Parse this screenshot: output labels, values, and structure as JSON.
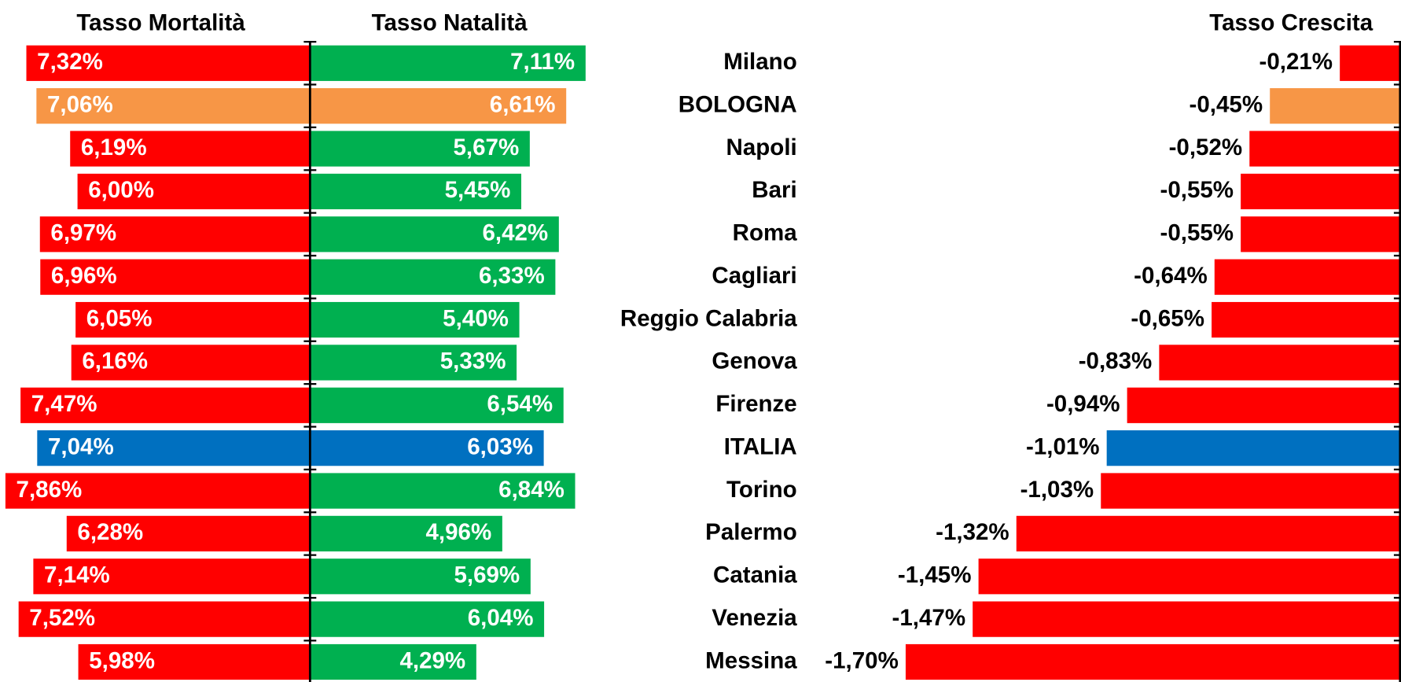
{
  "chart_data": {
    "type": "butterfly",
    "categories": [
      "Milano",
      "BOLOGNA",
      "Napoli",
      "Bari",
      "Roma",
      "Cagliari",
      "Reggio Calabria",
      "Genova",
      "Firenze",
      "ITALIA",
      "Torino",
      "Palermo",
      "Catania",
      "Venezia",
      "Messina"
    ],
    "series": [
      {
        "name": "Tasso Mortalità",
        "reversed": true,
        "xlim": [
          0,
          8
        ],
        "values": [
          7.32,
          7.06,
          6.19,
          6.0,
          6.97,
          6.96,
          6.05,
          6.16,
          7.47,
          7.04,
          7.86,
          6.28,
          7.14,
          7.52,
          5.98
        ],
        "value_labels": [
          "7,32%",
          "7,06%",
          "6,19%",
          "6,00%",
          "6,97%",
          "6,96%",
          "6,05%",
          "6,16%",
          "7,47%",
          "7,04%",
          "7,86%",
          "6,28%",
          "7,14%",
          "7,52%",
          "5,98%"
        ],
        "colors": [
          "#ff0000",
          "#f79646",
          "#ff0000",
          "#ff0000",
          "#ff0000",
          "#ff0000",
          "#ff0000",
          "#ff0000",
          "#ff0000",
          "#0070c0",
          "#ff0000",
          "#ff0000",
          "#ff0000",
          "#ff0000",
          "#ff0000"
        ]
      },
      {
        "name": "Tasso Natalità",
        "reversed": false,
        "xlim": [
          0,
          8
        ],
        "values": [
          7.11,
          6.61,
          5.67,
          5.45,
          6.42,
          6.33,
          5.4,
          5.33,
          6.54,
          6.03,
          6.84,
          4.96,
          5.69,
          6.04,
          4.29
        ],
        "value_labels": [
          "7,11%",
          "6,61%",
          "5,67%",
          "5,45%",
          "6,42%",
          "6,33%",
          "5,40%",
          "5,33%",
          "6,54%",
          "6,03%",
          "6,84%",
          "4,96%",
          "5,69%",
          "6,04%",
          "4,29%"
        ],
        "colors": [
          "#00b050",
          "#f79646",
          "#00b050",
          "#00b050",
          "#00b050",
          "#00b050",
          "#00b050",
          "#00b050",
          "#00b050",
          "#0070c0",
          "#00b050",
          "#00b050",
          "#00b050",
          "#00b050",
          "#00b050"
        ]
      },
      {
        "name": "Tasso Crescita",
        "reversed": false,
        "xlim": [
          -1.8,
          0
        ],
        "values": [
          -0.21,
          -0.45,
          -0.52,
          -0.55,
          -0.55,
          -0.64,
          -0.65,
          -0.83,
          -0.94,
          -1.01,
          -1.03,
          -1.32,
          -1.45,
          -1.47,
          -1.7
        ],
        "value_labels": [
          "-0,21%",
          "-0,45%",
          "-0,52%",
          "-0,55%",
          "-0,55%",
          "-0,64%",
          "-0,65%",
          "-0,83%",
          "-0,94%",
          "-1,01%",
          "-1,03%",
          "-1,32%",
          "-1,45%",
          "-1,47%",
          "-1,70%"
        ],
        "colors": [
          "#ff0000",
          "#f79646",
          "#ff0000",
          "#ff0000",
          "#ff0000",
          "#ff0000",
          "#ff0000",
          "#ff0000",
          "#ff0000",
          "#0070c0",
          "#ff0000",
          "#ff0000",
          "#ff0000",
          "#ff0000",
          "#ff0000"
        ]
      }
    ]
  }
}
